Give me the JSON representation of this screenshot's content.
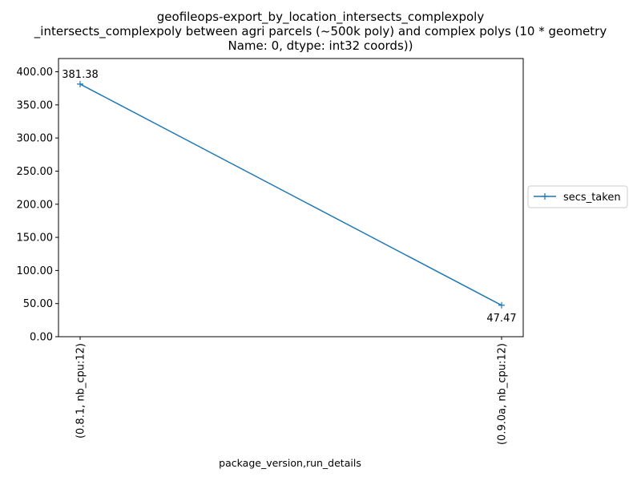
{
  "chart_data": {
    "type": "line",
    "title_lines": [
      "geofileops-export_by_location_intersects_complexpoly",
      "_intersects_complexpoly between agri parcels (~500k poly) and complex polys (10 * geometry",
      "Name: 0, dtype: int32 coords))"
    ],
    "xlabel": "package_version,run_details",
    "ylabel": "",
    "categories": [
      "(0.8.1, nb_cpu:12)",
      "(0.9.0a, nb_cpu:12)"
    ],
    "series": [
      {
        "name": "secs_taken",
        "values": [
          381.38,
          47.47
        ],
        "color": "#1f77b4",
        "marker": "+"
      }
    ],
    "data_labels": [
      "381.38",
      "47.47"
    ],
    "ylim": [
      0,
      420
    ],
    "yticks": [
      0,
      50,
      100,
      150,
      200,
      250,
      300,
      350,
      400
    ],
    "ytick_labels": [
      "0.00",
      "50.00",
      "100.00",
      "150.00",
      "200.00",
      "250.00",
      "300.00",
      "350.00",
      "400.00"
    ],
    "grid": false,
    "legend_position": "right-center"
  }
}
